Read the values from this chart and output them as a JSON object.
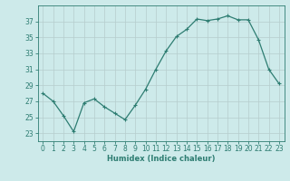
{
  "x": [
    0,
    1,
    2,
    3,
    4,
    5,
    6,
    7,
    8,
    9,
    10,
    11,
    12,
    13,
    14,
    15,
    16,
    17,
    18,
    19,
    20,
    21,
    22,
    23
  ],
  "y": [
    28,
    27,
    25.2,
    23.2,
    26.8,
    27.3,
    26.3,
    25.5,
    24.7,
    26.5,
    28.5,
    31,
    33.3,
    35.1,
    36,
    37.3,
    37.1,
    37.3,
    37.7,
    37.2,
    37.2,
    34.7,
    31,
    29.2
  ],
  "line_color": "#2e7d72",
  "marker": "+",
  "marker_size": 3.5,
  "marker_lw": 0.8,
  "xlabel": "Humidex (Indice chaleur)",
  "bg_color": "#cdeaea",
  "grid_color": "#b5cdcd",
  "tick_color": "#2e7d72",
  "axis_color": "#2e7d72",
  "ylim": [
    22,
    39
  ],
  "xlim": [
    -0.5,
    23.5
  ],
  "yticks": [
    23,
    25,
    27,
    29,
    31,
    33,
    35,
    37
  ],
  "xticks": [
    0,
    1,
    2,
    3,
    4,
    5,
    6,
    7,
    8,
    9,
    10,
    11,
    12,
    13,
    14,
    15,
    16,
    17,
    18,
    19,
    20,
    21,
    22,
    23
  ],
  "tick_fontsize": 5.5,
  "xlabel_fontsize": 6.0,
  "line_width": 0.9
}
